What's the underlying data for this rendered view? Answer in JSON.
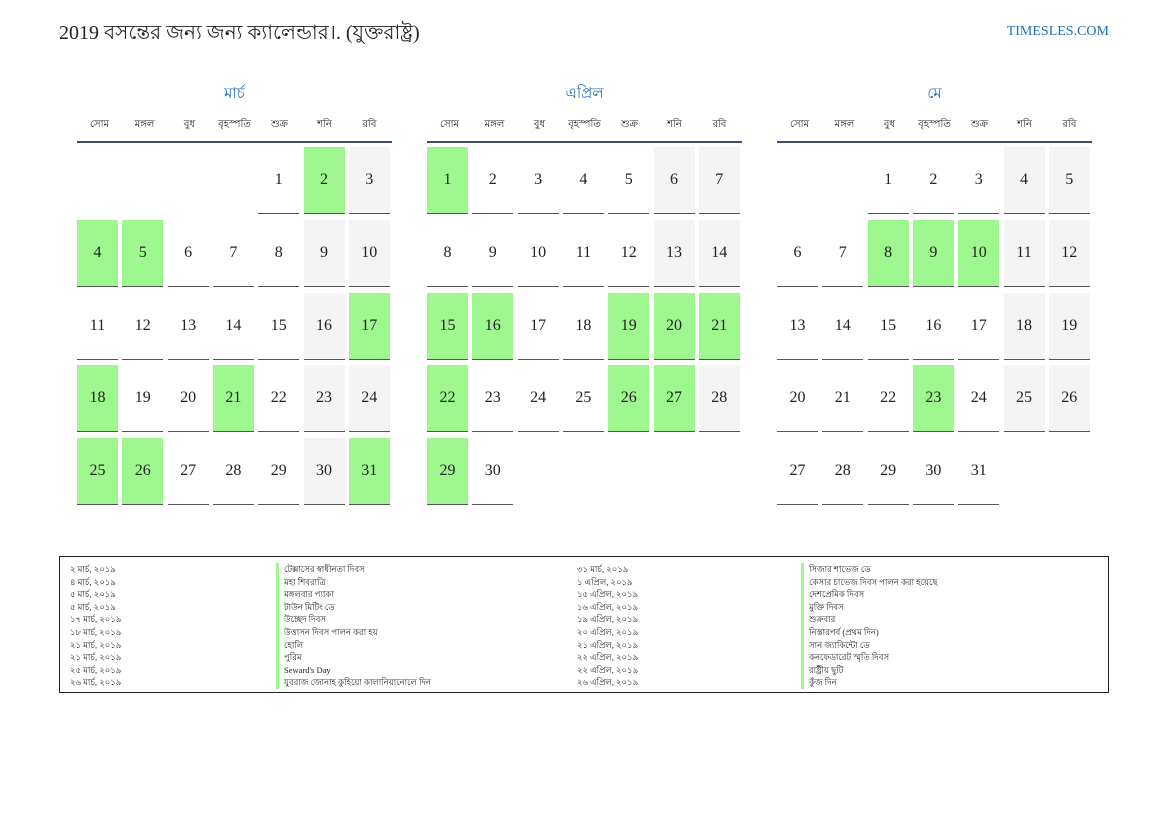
{
  "header": {
    "title": "2019 বসন্তের জন্য জন্য ক্যালেন্ডার।. (যুক্তরাষ্ট্র)",
    "site": "TIMESLES.COM"
  },
  "weekdays": [
    "সোম",
    "মঙ্গল",
    "বুধ",
    "বৃহস্পতি",
    "শুক্র",
    "শনি",
    "রবি"
  ],
  "months": [
    {
      "name": "মার্চ",
      "start": 4,
      "days": 31,
      "holidays": [
        2,
        4,
        5,
        17,
        18,
        21,
        25,
        26,
        31
      ]
    },
    {
      "name": "এপ্রিল",
      "start": 0,
      "days": 30,
      "holidays": [
        1,
        15,
        16,
        19,
        20,
        21,
        22,
        26,
        27,
        29
      ]
    },
    {
      "name": "মে",
      "start": 2,
      "days": 31,
      "holidays": [
        8,
        9,
        10,
        23
      ]
    }
  ],
  "holidays": {
    "col1": [
      {
        "date": "২ মার্চ, ২০১৯",
        "name": "টেক্সাসের স্বাধীনতা দিবস"
      },
      {
        "date": "৪ মার্চ, ২০১৯",
        "name": "মহা শিবরাত্রি"
      },
      {
        "date": "৫ মার্চ, ২০১৯",
        "name": "মঙ্গলবার প্যাকা"
      },
      {
        "date": "৫ মার্চ, ২০১৯",
        "name": "টাউন মিটিং ডে"
      },
      {
        "date": "১৭ মার্চ, ২০১৯",
        "name": "উচ্ছেদ দিবস"
      },
      {
        "date": "১৮ মার্চ, ২০১৯",
        "name": "উত্তাসন দিবস পালন করা হয়"
      },
      {
        "date": "২১ মার্চ, ২০১৯",
        "name": "হোলি"
      },
      {
        "date": "২১ মার্চ, ২০১৯",
        "name": "পুরিম"
      },
      {
        "date": "২৫ মার্চ, ২০১৯",
        "name": "Seward's Day"
      },
      {
        "date": "২৬ মার্চ, ২০১৯",
        "name": "যুবরাজ জোনাহ কুহিয়ো কালানিয়ানোলে দিন"
      }
    ],
    "col2": [
      {
        "date": "৩১ মার্চ, ২০১৯",
        "name": "সিজার শাভেজ ডে"
      },
      {
        "date": "১ এপ্রিল, ২০১৯",
        "name": "কেসার চাভেজ দিবস পালন করা হয়েছে"
      },
      {
        "date": "১৫ এপ্রিল, ২০১৯",
        "name": "দেশপ্রেমিক দিবস"
      },
      {
        "date": "১৬ এপ্রিল, ২০১৯",
        "name": "মুক্তি দিবস"
      },
      {
        "date": "১৯ এপ্রিল, ২০১৯",
        "name": "শুক্রবার"
      },
      {
        "date": "২০ এপ্রিল, ২০১৯",
        "name": "নিস্তারপর্ব (প্রথম দিন)"
      },
      {
        "date": "২১ এপ্রিল, ২০১৯",
        "name": "সান জ্যাকিন্টো ডে"
      },
      {
        "date": "২২ এপ্রিল, ২০১৯",
        "name": "কনফেডারেট স্মৃতি দিবস"
      },
      {
        "date": "২২ এপ্রিল, ২০১৯",
        "name": "রাষ্ট্রীয় ছুটি"
      },
      {
        "date": "২৬ এপ্রিল, ২০১৯",
        "name": "কুঁজ দিন"
      }
    ]
  },
  "colors": {
    "accent": "#1f6fb5",
    "holiday": "#9ef78f",
    "weekend": "#f4f4f4",
    "rule": "#3a4e72"
  }
}
